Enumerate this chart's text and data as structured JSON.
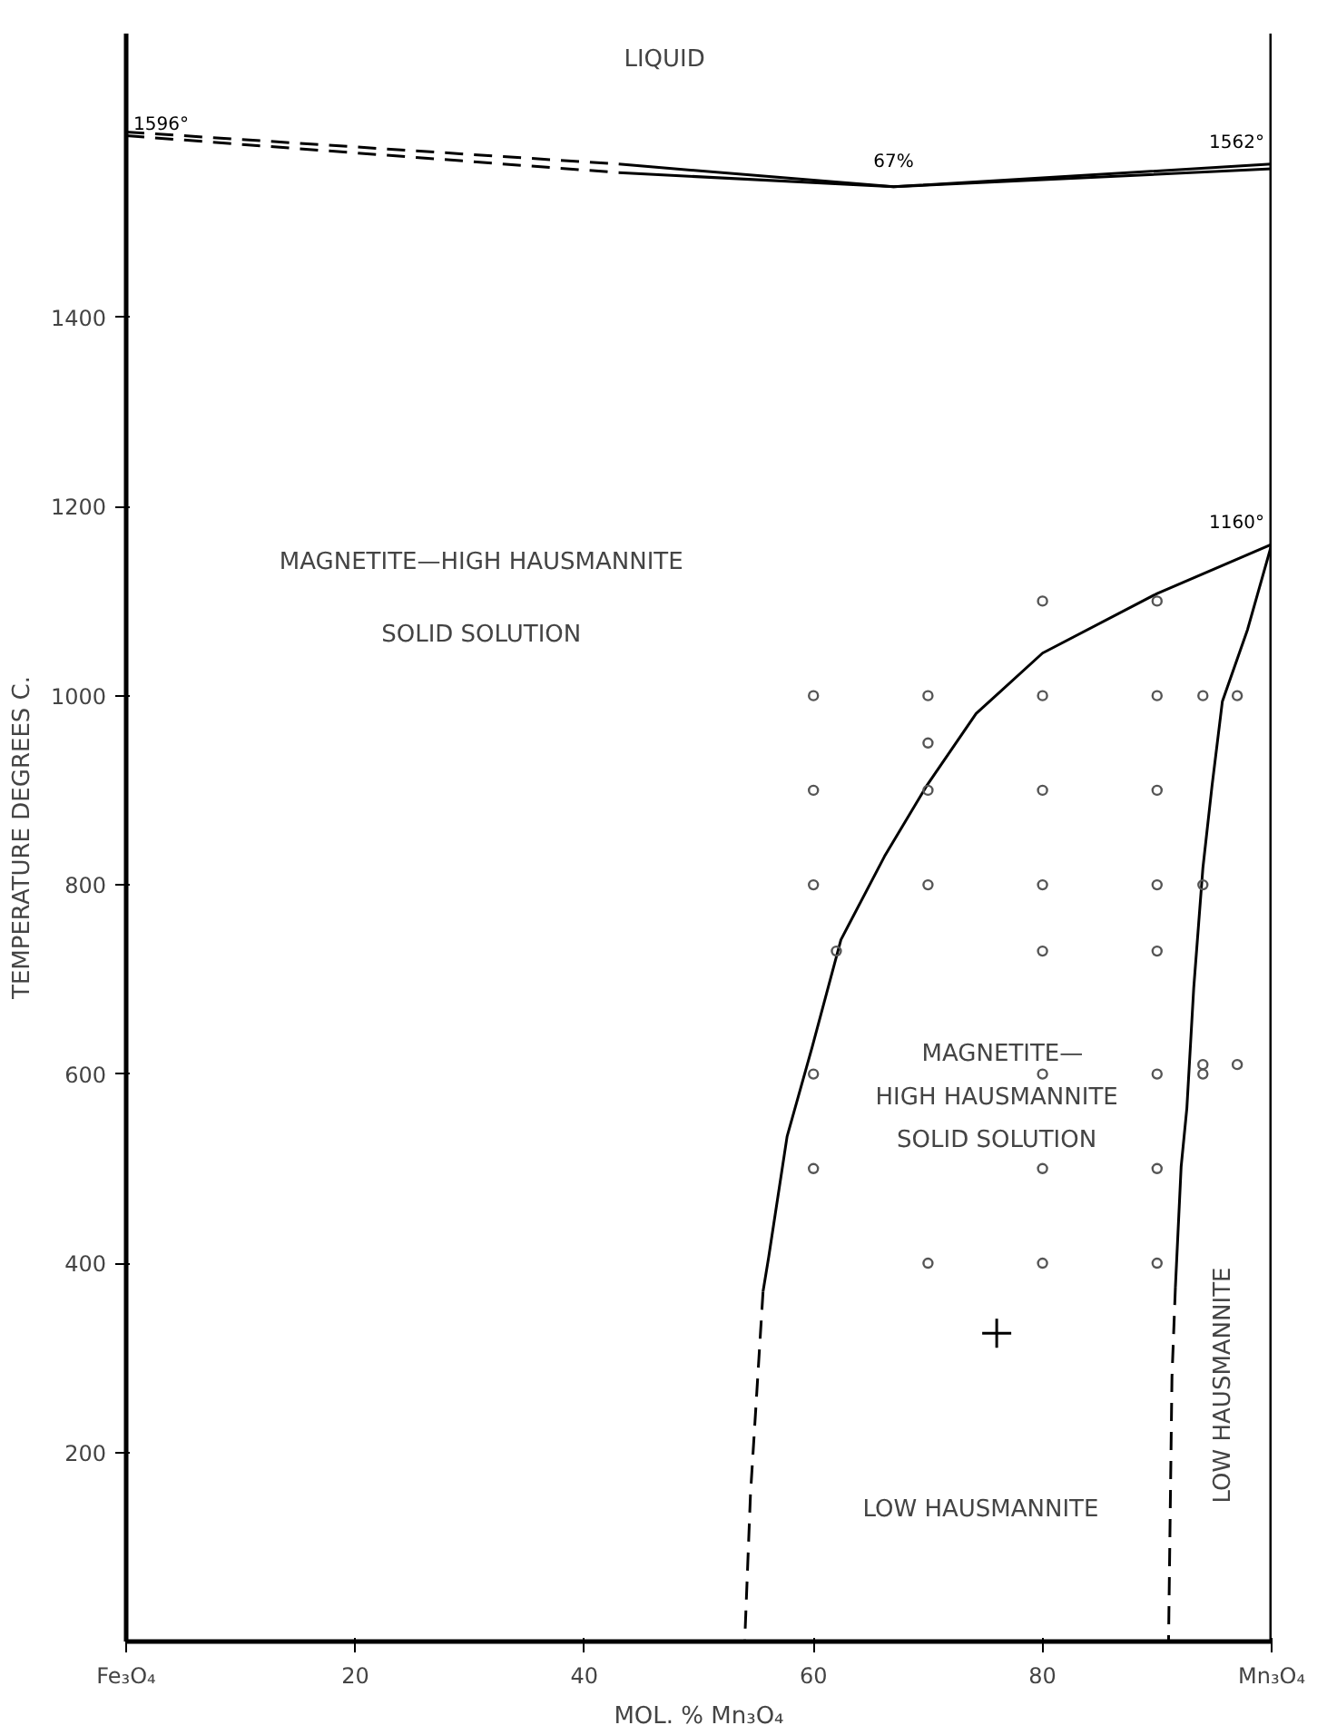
{
  "chart_data": {
    "type": "line",
    "xlabel": "MOL. % Mn₃O₄",
    "ylabel": "TEMPERATURE DEGREES C.",
    "xlim": [
      0,
      100
    ],
    "ylim": [
      0,
      1700
    ],
    "xticks": [
      {
        "value": 0,
        "label": "Fe₃O₄"
      },
      20,
      40,
      60,
      80,
      {
        "value": 100,
        "label": "Mn₃O₄"
      }
    ],
    "yticks": [
      200,
      400,
      600,
      800,
      1000,
      1200,
      1400
    ],
    "grid": false,
    "series": [
      {
        "color": "#000000",
        "line_style": "dashed",
        "x": [
          0,
          43
        ],
        "values": [
          1596,
          1562
        ]
      },
      {
        "color": "#000000",
        "line_style": "solid",
        "x": [
          43,
          67,
          100
        ],
        "values": [
          1562,
          1538,
          1562
        ]
      },
      {
        "color": "#000000",
        "line_style": "dashed",
        "x": [
          0,
          43
        ],
        "values": [
          1592,
          1553
        ]
      },
      {
        "color": "#000000",
        "line_style": "solid",
        "x": [
          43,
          67,
          100
        ],
        "values": [
          1553,
          1538,
          1557
        ]
      },
      {
        "color": "#000000",
        "line_style": "solid",
        "x": [
          100,
          90,
          80,
          74.2,
          69.9,
          66.2,
          62.4,
          59.9,
          57.7,
          56.1,
          55.6
        ],
        "values": [
          1160,
          1108,
          1045,
          981,
          905,
          830,
          742,
          629,
          534,
          407,
          370
        ]
      },
      {
        "color": "#000000",
        "line_style": "dashed",
        "x": [
          55.6,
          54.5,
          54
        ],
        "values": [
          370,
          155,
          0
        ]
      },
      {
        "color": "#000000",
        "line_style": "solid",
        "x": [
          100,
          97.9,
          95.7,
          94.8,
          94,
          93.2,
          92.6,
          92.1,
          91.6
        ],
        "values": [
          1160,
          1070,
          994,
          905,
          818,
          691,
          564,
          502,
          375
        ]
      },
      {
        "color": "#000000",
        "line_style": "dashed",
        "x": [
          91.6,
          91.3,
          91
        ],
        "values": [
          375,
          280,
          0
        ]
      },
      {
        "type": "scatter",
        "marker": "circle",
        "color": "#555555",
        "x": [
          80,
          90,
          60,
          70,
          80,
          90,
          94,
          97,
          70,
          60,
          70,
          80,
          90,
          60,
          70,
          80,
          90,
          94,
          62,
          80,
          90,
          60,
          80,
          90,
          94,
          94,
          97,
          60,
          80,
          90,
          70,
          80,
          90
        ],
        "values": [
          1100,
          1100,
          1000,
          1000,
          1000,
          1000,
          1000,
          1000,
          950,
          900,
          900,
          900,
          900,
          800,
          800,
          800,
          800,
          800,
          730,
          730,
          730,
          600,
          600,
          600,
          610,
          600,
          610,
          500,
          500,
          500,
          400,
          400,
          400
        ]
      },
      {
        "type": "scatter",
        "marker": "cross",
        "color": "#000000",
        "x": [
          76
        ],
        "values": [
          326
        ]
      }
    ],
    "annotations": [
      "LIQUID",
      {
        "text": "1596°",
        "x": 0,
        "y": 1596
      },
      {
        "text": "67%",
        "x": 67,
        "y": 1538
      },
      {
        "text": "1562°",
        "x": 100,
        "y": 1562
      },
      {
        "text": "1160°",
        "x": 100,
        "y": 1160
      },
      "MAGNETITE—HIGH HAUSMANNITE",
      "SOLID SOLUTION",
      "MAGNETITE—",
      "HIGH HAUSMANNITE",
      "SOLID SOLUTION",
      "LOW HAUSMANNITE",
      "LOW HAUSMANNITE"
    ]
  }
}
